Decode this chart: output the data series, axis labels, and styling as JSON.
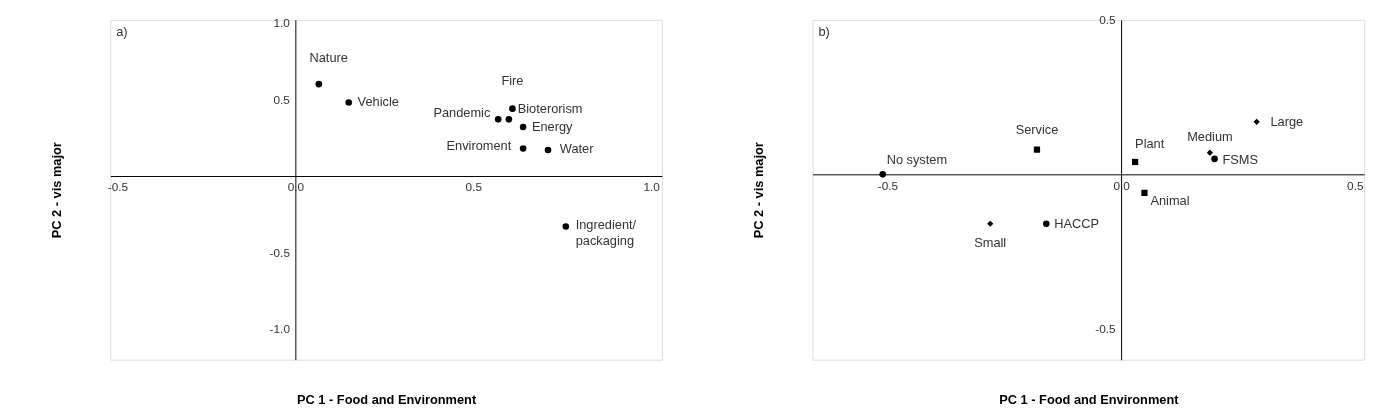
{
  "chart_data": [
    {
      "type": "scatter",
      "xlabel": "PC 1 - Food and Environment",
      "ylabel": "PC 2 - vis major",
      "xlim": [
        -0.52,
        1.03
      ],
      "ylim": [
        -1.2,
        1.02
      ],
      "xticks": [
        {
          "value": -0.5,
          "label": "-0.5"
        },
        {
          "value": 0,
          "label": "0.0"
        },
        {
          "value": 0.5,
          "label": "0.5"
        },
        {
          "value": 1.0,
          "label": "1.0"
        }
      ],
      "yticks": [
        {
          "value": -1.0,
          "label": "-1.0"
        },
        {
          "value": -0.5,
          "label": "-0.5"
        },
        {
          "value": 0.5,
          "label": "0.5"
        },
        {
          "value": 1.0,
          "label": "1.0"
        }
      ],
      "grid": false,
      "series": [
        {
          "color": "#000000",
          "marker": "circle",
          "x": [
            0.066,
            0.15,
            0.61,
            0.57,
            0.6,
            0.64,
            0.64,
            0.71,
            0.76
          ],
          "values": [
            0.6,
            0.48,
            0.44,
            0.37,
            0.37,
            0.32,
            0.18,
            0.17,
            -0.33
          ]
        }
      ],
      "annotations": [
        "a)",
        {
          "text": "Nature",
          "x": 0.066,
          "y": 0.6
        },
        {
          "text": "Vehicle",
          "x": 0.15,
          "y": 0.48
        },
        {
          "text": "Fire",
          "x": 0.61,
          "y": 0.44
        },
        {
          "text": "Pandemic",
          "x": 0.57,
          "y": 0.37
        },
        {
          "text": "Bioterorism",
          "x": 0.6,
          "y": 0.37
        },
        {
          "text": "Energy",
          "x": 0.64,
          "y": 0.32
        },
        {
          "text": "Enviroment",
          "x": 0.64,
          "y": 0.18
        },
        {
          "text": "Water",
          "x": 0.71,
          "y": 0.17
        },
        {
          "text": "Ingredient/\npackaging",
          "x": 0.76,
          "y": -0.33
        }
      ]
    },
    {
      "type": "scatter",
      "xlabel": "PC 1 - Food and Environment",
      "ylabel": "PC 2 - vis major",
      "xlim": [
        -0.66,
        0.52
      ],
      "ylim": [
        -0.6,
        0.5
      ],
      "xticks": [
        {
          "value": -0.5,
          "label": "-0.5"
        },
        {
          "value": 0,
          "label": "0.0"
        },
        {
          "value": 0.5,
          "label": "0.5"
        }
      ],
      "yticks": [
        {
          "value": -0.5,
          "label": "-0.5"
        },
        {
          "value": 0.5,
          "label": "0.5"
        }
      ],
      "grid": false,
      "series": [
        {
          "color": "#000000",
          "marker": "circle",
          "x": [
            -0.51,
            -0.16,
            0.2
          ],
          "values": [
            0.0,
            -0.16,
            0.05
          ]
        },
        {
          "color": "#000000",
          "marker": "square",
          "x": [
            -0.18,
            0.03,
            0.05
          ],
          "values": [
            0.08,
            0.04,
            -0.06
          ]
        },
        {
          "color": "#000000",
          "marker": "diamond",
          "x": [
            -0.28,
            0.19,
            0.29
          ],
          "values": [
            -0.16,
            0.07,
            0.17
          ]
        }
      ],
      "annotations": [
        "b)",
        {
          "text": "No system",
          "x": -0.51,
          "y": 0.0
        },
        {
          "text": "Service",
          "x": -0.18,
          "y": 0.08
        },
        {
          "text": "Plant",
          "x": 0.03,
          "y": 0.04
        },
        {
          "text": "Medium",
          "x": 0.19,
          "y": 0.07
        },
        {
          "text": "FSMS",
          "x": 0.2,
          "y": 0.05
        },
        {
          "text": "Large",
          "x": 0.29,
          "y": 0.17
        },
        {
          "text": "Animal",
          "x": 0.05,
          "y": -0.06
        },
        {
          "text": "Small",
          "x": -0.28,
          "y": -0.16
        },
        {
          "text": "HACCP",
          "x": -0.16,
          "y": -0.16
        }
      ]
    }
  ]
}
